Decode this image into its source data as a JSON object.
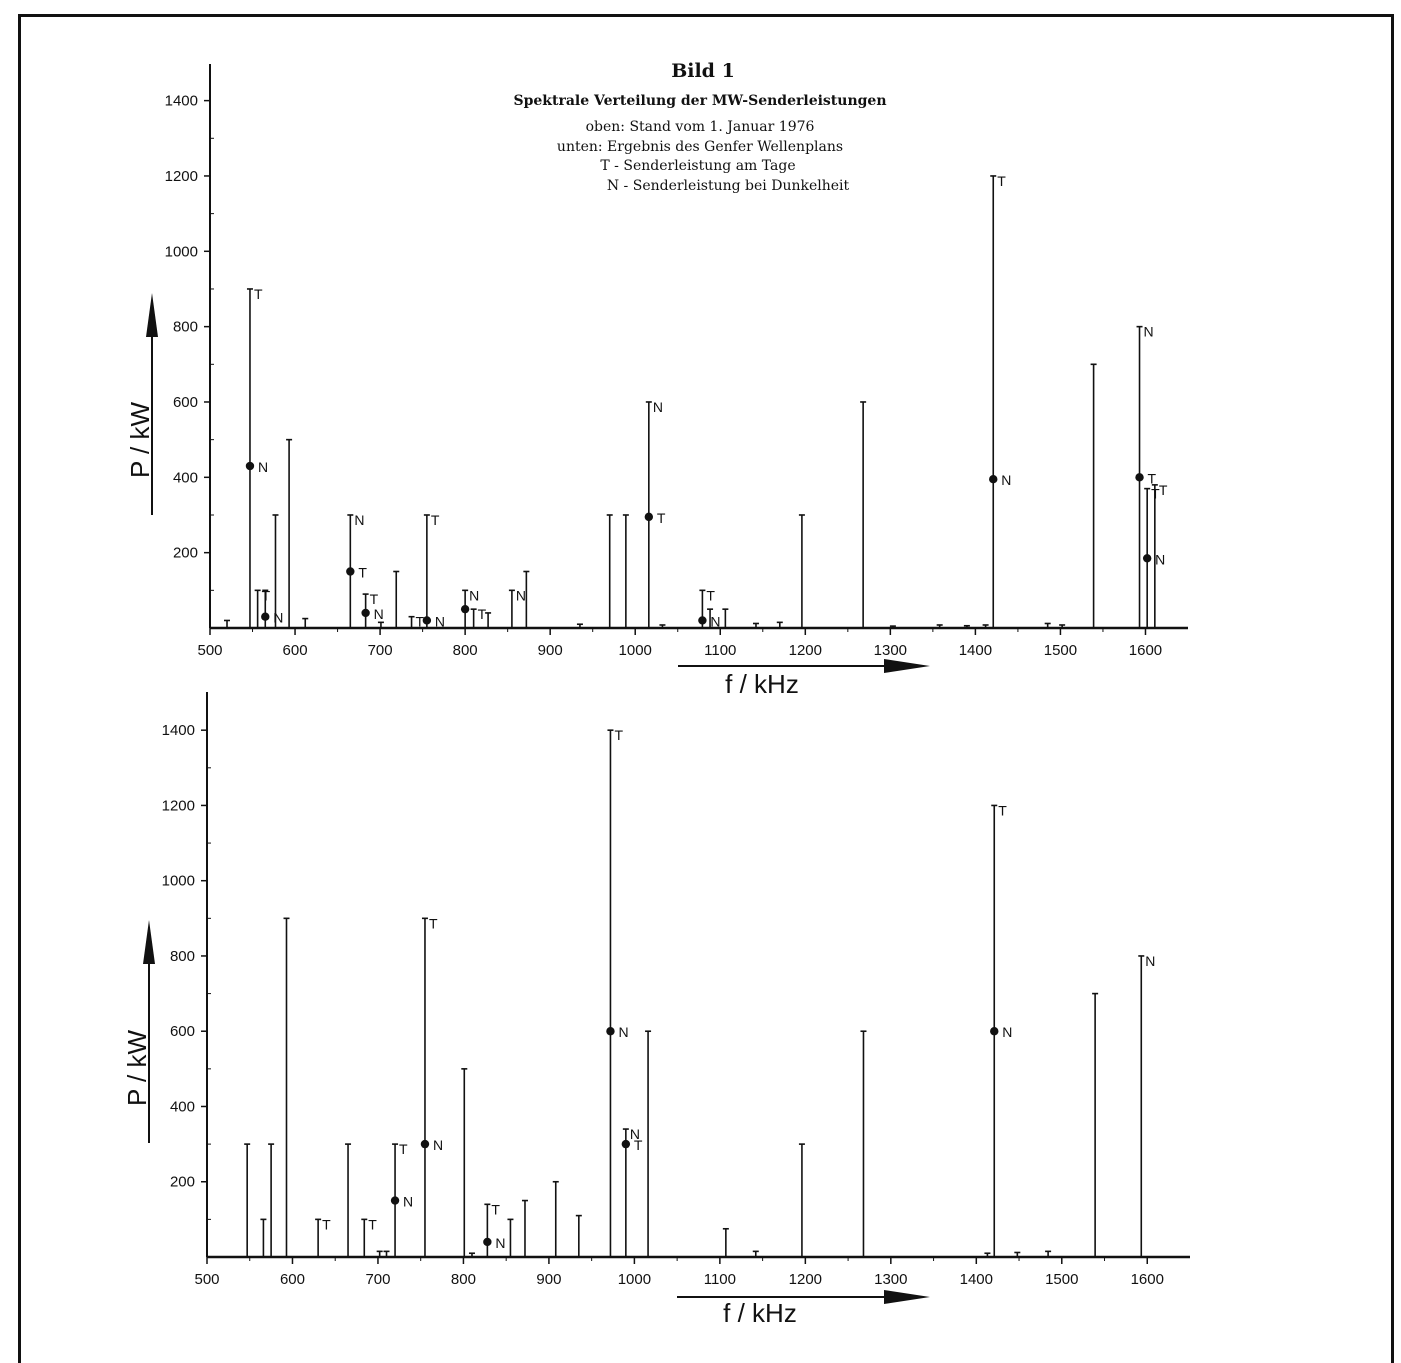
{
  "figure": {
    "title": "Bild 1",
    "subtitle": "Spektrale Verteilung der MW-Senderleistungen",
    "notes": [
      "oben: Stand vom 1. Januar 1976",
      "unten: Ergebnis des Genfer Wellenplans",
      "T - Senderleistung am Tage",
      "N - Senderleistung bei Dunkelheit"
    ]
  },
  "legend_letters": {
    "day": "T",
    "night": "N"
  },
  "chart_data": [
    {
      "type": "bar",
      "name": "oben",
      "xlabel": "f / kHz",
      "ylabel": "P / kW",
      "xlim": [
        500,
        1650
      ],
      "ylim": [
        0,
        1500
      ],
      "xticks": [
        500,
        600,
        700,
        800,
        900,
        1000,
        1100,
        1200,
        1300,
        1400,
        1500,
        1600
      ],
      "yticks": [
        200,
        400,
        600,
        800,
        1000,
        1200,
        1400
      ],
      "grid": false,
      "bars": [
        {
          "f": 520,
          "p": 20
        },
        {
          "f": 547,
          "p": 900,
          "label": "T"
        },
        {
          "f": 556,
          "p": 100,
          "label": "T"
        },
        {
          "f": 565,
          "p": 100
        },
        {
          "f": 577,
          "p": 300
        },
        {
          "f": 593,
          "p": 500
        },
        {
          "f": 612,
          "p": 25
        },
        {
          "f": 665,
          "p": 300,
          "label": "N"
        },
        {
          "f": 683,
          "p": 90,
          "label": "T"
        },
        {
          "f": 701,
          "p": 15
        },
        {
          "f": 719,
          "p": 150
        },
        {
          "f": 737,
          "p": 30,
          "label": "T"
        },
        {
          "f": 755,
          "p": 300,
          "label": "T"
        },
        {
          "f": 800,
          "p": 100,
          "label": "N"
        },
        {
          "f": 810,
          "p": 50,
          "label": "T"
        },
        {
          "f": 827,
          "p": 40
        },
        {
          "f": 855,
          "p": 100,
          "label": "N"
        },
        {
          "f": 872,
          "p": 150
        },
        {
          "f": 935,
          "p": 10
        },
        {
          "f": 970,
          "p": 300
        },
        {
          "f": 989,
          "p": 300
        },
        {
          "f": 1016,
          "p": 600,
          "label": "N"
        },
        {
          "f": 1032,
          "p": 8
        },
        {
          "f": 1079,
          "p": 100,
          "label": "T"
        },
        {
          "f": 1088,
          "p": 50
        },
        {
          "f": 1106,
          "p": 50
        },
        {
          "f": 1142,
          "p": 12
        },
        {
          "f": 1170,
          "p": 15
        },
        {
          "f": 1196,
          "p": 300
        },
        {
          "f": 1268,
          "p": 600
        },
        {
          "f": 1303,
          "p": 5
        },
        {
          "f": 1358,
          "p": 8
        },
        {
          "f": 1390,
          "p": 6
        },
        {
          "f": 1412,
          "p": 8
        },
        {
          "f": 1421,
          "p": 1200,
          "label": "T"
        },
        {
          "f": 1485,
          "p": 12
        },
        {
          "f": 1502,
          "p": 8
        },
        {
          "f": 1539,
          "p": 700
        },
        {
          "f": 1593,
          "p": 800,
          "label": "N"
        },
        {
          "f": 1602,
          "p": 370,
          "label": "T"
        },
        {
          "f": 1611,
          "p": 380,
          "label": "T"
        }
      ],
      "points": [
        {
          "f": 547,
          "p": 430,
          "label": "N"
        },
        {
          "f": 565,
          "p": 30,
          "label": "N"
        },
        {
          "f": 665,
          "p": 150,
          "label": "T"
        },
        {
          "f": 683,
          "p": 40,
          "label": "N"
        },
        {
          "f": 755,
          "p": 20,
          "label": "N"
        },
        {
          "f": 800,
          "p": 50
        },
        {
          "f": 1016,
          "p": 295,
          "label": "T"
        },
        {
          "f": 1079,
          "p": 20,
          "label": "N"
        },
        {
          "f": 1421,
          "p": 395,
          "label": "N"
        },
        {
          "f": 1593,
          "p": 400,
          "label": "T"
        },
        {
          "f": 1602,
          "p": 185,
          "label": "N"
        }
      ]
    },
    {
      "type": "bar",
      "name": "unten",
      "xlabel": "f / kHz",
      "ylabel": "P / kW",
      "xlim": [
        500,
        1650
      ],
      "ylim": [
        0,
        1500
      ],
      "xticks": [
        500,
        600,
        700,
        800,
        900,
        1000,
        1100,
        1200,
        1300,
        1400,
        1500,
        1600
      ],
      "yticks": [
        200,
        400,
        600,
        800,
        1000,
        1200,
        1400
      ],
      "grid": false,
      "bars": [
        {
          "f": 547,
          "p": 300
        },
        {
          "f": 566,
          "p": 100
        },
        {
          "f": 575,
          "p": 300
        },
        {
          "f": 593,
          "p": 900
        },
        {
          "f": 630,
          "p": 100,
          "label": "T"
        },
        {
          "f": 665,
          "p": 300
        },
        {
          "f": 684,
          "p": 100,
          "label": "T"
        },
        {
          "f": 702,
          "p": 15
        },
        {
          "f": 710,
          "p": 15
        },
        {
          "f": 720,
          "p": 300,
          "label": "T"
        },
        {
          "f": 755,
          "p": 900,
          "label": "T"
        },
        {
          "f": 801,
          "p": 500
        },
        {
          "f": 810,
          "p": 10
        },
        {
          "f": 828,
          "p": 140,
          "label": "T"
        },
        {
          "f": 855,
          "p": 100
        },
        {
          "f": 872,
          "p": 150
        },
        {
          "f": 908,
          "p": 200
        },
        {
          "f": 935,
          "p": 110
        },
        {
          "f": 972,
          "p": 1400,
          "label": "T"
        },
        {
          "f": 990,
          "p": 340,
          "label": "N"
        },
        {
          "f": 1016,
          "p": 600
        },
        {
          "f": 1107,
          "p": 75
        },
        {
          "f": 1142,
          "p": 15
        },
        {
          "f": 1196,
          "p": 300
        },
        {
          "f": 1268,
          "p": 600
        },
        {
          "f": 1413,
          "p": 10
        },
        {
          "f": 1421,
          "p": 1200,
          "label": "T"
        },
        {
          "f": 1448,
          "p": 12
        },
        {
          "f": 1484,
          "p": 15
        },
        {
          "f": 1539,
          "p": 700
        },
        {
          "f": 1593,
          "p": 800,
          "label": "N"
        }
      ],
      "points": [
        {
          "f": 720,
          "p": 150,
          "label": "N"
        },
        {
          "f": 755,
          "p": 300,
          "label": "N"
        },
        {
          "f": 828,
          "p": 40,
          "label": "N"
        },
        {
          "f": 972,
          "p": 600,
          "label": "N"
        },
        {
          "f": 990,
          "p": 300,
          "label": "T"
        },
        {
          "f": 1421,
          "p": 600,
          "label": "N"
        }
      ]
    }
  ]
}
